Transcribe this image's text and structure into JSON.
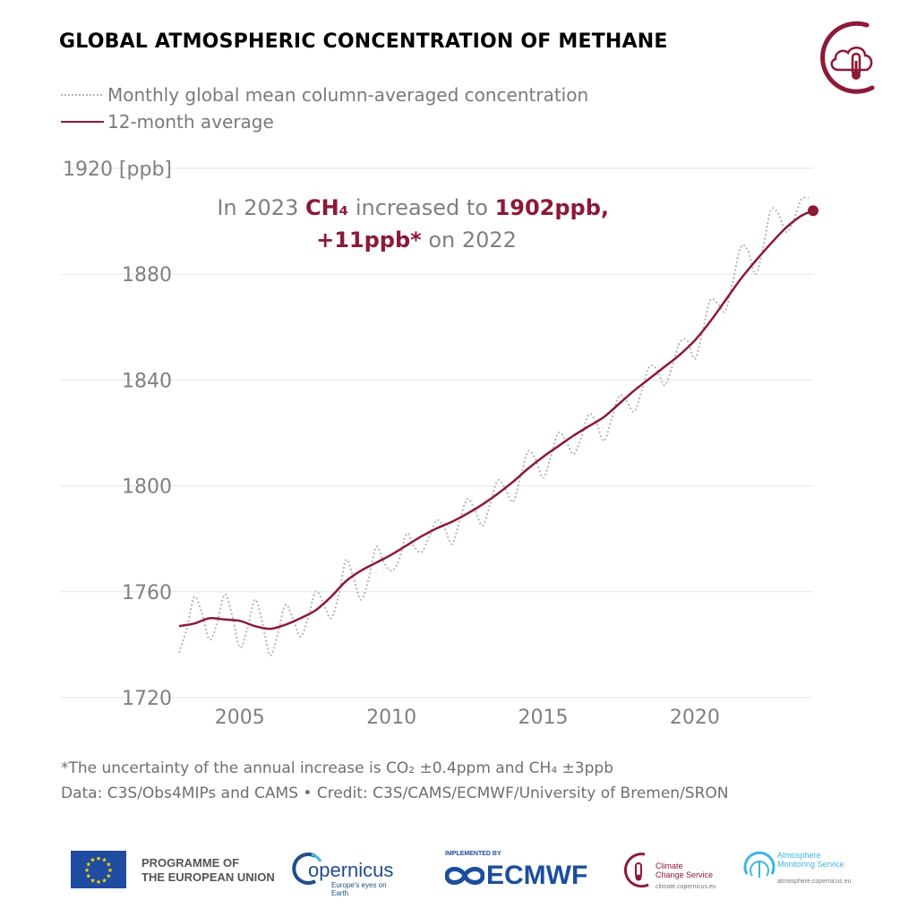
{
  "title": "GLOBAL ATMOSPHERIC CONCENTRATION OF METHANE",
  "legend": {
    "monthly": "Monthly global mean column-averaged concentration",
    "average": "12-month average"
  },
  "annotation": {
    "line1_pre": "In 2023 ",
    "line1_species": "CH₄",
    "line1_mid": " increased to ",
    "line1_value": "1902ppb,",
    "line2_value": "+11ppb*",
    "line2_post": " on 2022"
  },
  "notes": {
    "uncertainty": "*The uncertainty of the annual increase is CO₂ ±0.4ppm and CH₄ ±3ppb",
    "credit": "Data: C3S/Obs4MIPs and CAMS • Credit: C3S/CAMS/ECMWF/University of Bremen/SRON"
  },
  "logos": {
    "eu_programme_line1": "PROGRAMME OF",
    "eu_programme_line2": "THE EUROPEAN UNION",
    "copernicus": "opernicus",
    "copernicus_letter": "C",
    "copernicus_tagline": "Europe's eyes on Earth",
    "implemented_by": "IMPLEMENTED BY",
    "ecmwf": "ECMWF",
    "c3s_line1": "Climate",
    "c3s_line2": "Change Service",
    "c3s_url": "climate.copernicus.eu",
    "cams_line1": "Atmosphere",
    "cams_line2": "Monitoring Service",
    "cams_url": "atmosphere.copernicus.eu"
  },
  "colors": {
    "accent": "#8c1a36",
    "monthly": "#b5b5b5",
    "grid": "#e6e6e6",
    "text": "#808080",
    "eu_blue": "#1f4ba0",
    "eu_star": "#ffdd00",
    "ecmwf_blue": "#1b4e9e",
    "copernicus_blue": "#1f4e8c",
    "cams_cyan": "#3fb6df"
  },
  "chart_data": {
    "type": "line",
    "title": "GLOBAL ATMOSPHERIC CONCENTRATION OF METHANE",
    "ylabel": "[ppb]",
    "ylim": [
      1720,
      1920
    ],
    "yticks": [
      1720,
      1760,
      1800,
      1840,
      1880,
      1920
    ],
    "ytick_labels": [
      "1720",
      "1760",
      "1800",
      "1840",
      "1880",
      "1920 [ppb]"
    ],
    "xlim": [
      2003,
      2023.9
    ],
    "xticks": [
      2005,
      2010,
      2015,
      2020
    ],
    "grid": true,
    "legend_position": "top-left",
    "series": [
      {
        "name": "12-month average",
        "style": "solid",
        "x": [
          2003.0,
          2003.5,
          2004.0,
          2004.5,
          2005.0,
          2005.5,
          2006.0,
          2006.5,
          2007.0,
          2007.5,
          2008.0,
          2008.5,
          2009.0,
          2009.5,
          2010.0,
          2010.5,
          2011.0,
          2011.5,
          2012.0,
          2012.5,
          2013.0,
          2013.5,
          2014.0,
          2014.5,
          2015.0,
          2015.5,
          2016.0,
          2016.5,
          2017.0,
          2017.5,
          2018.0,
          2018.5,
          2019.0,
          2019.5,
          2020.0,
          2020.5,
          2021.0,
          2021.5,
          2022.0,
          2022.5,
          2023.0,
          2023.5,
          2023.9
        ],
        "y": [
          1747,
          1748,
          1750,
          1749.5,
          1749,
          1747,
          1746,
          1747.5,
          1750,
          1753,
          1758,
          1764,
          1768,
          1771,
          1774,
          1777.5,
          1781,
          1784,
          1786.5,
          1789.5,
          1793,
          1797,
          1801.5,
          1806.5,
          1811,
          1815,
          1819,
          1822.5,
          1826,
          1831,
          1836,
          1840.5,
          1845,
          1849.5,
          1855,
          1862,
          1870,
          1878,
          1885,
          1891.5,
          1897.5,
          1902,
          1904
        ]
      },
      {
        "name": "Monthly global mean column-averaged concentration",
        "style": "dotted",
        "seasonal_amplitude": 7,
        "x": [
          2003.0,
          2003.25,
          2003.5,
          2003.75,
          2004.0,
          2004.25,
          2004.5,
          2004.75,
          2005.0,
          2005.25,
          2005.5,
          2005.75,
          2006.0,
          2006.25,
          2006.5,
          2006.75,
          2007.0,
          2007.25,
          2007.5,
          2007.75,
          2008.0,
          2008.25,
          2008.5,
          2008.75,
          2009.0,
          2009.25,
          2009.5,
          2009.75,
          2010.0,
          2010.25,
          2010.5,
          2010.75,
          2011.0,
          2011.25,
          2011.5,
          2011.75,
          2012.0,
          2012.25,
          2012.5,
          2012.75,
          2013.0,
          2013.25,
          2013.5,
          2013.75,
          2014.0,
          2014.25,
          2014.5,
          2014.75,
          2015.0,
          2015.25,
          2015.5,
          2015.75,
          2016.0,
          2016.25,
          2016.5,
          2016.75,
          2017.0,
          2017.25,
          2017.5,
          2017.75,
          2018.0,
          2018.25,
          2018.5,
          2018.75,
          2019.0,
          2019.25,
          2019.5,
          2019.75,
          2020.0,
          2020.25,
          2020.5,
          2020.75,
          2021.0,
          2021.25,
          2021.5,
          2021.75,
          2022.0,
          2022.25,
          2022.5,
          2022.75,
          2023.0,
          2023.25,
          2023.5,
          2023.75
        ],
        "y": [
          1737,
          1746,
          1758,
          1752,
          1742,
          1748,
          1759,
          1751,
          1739,
          1746,
          1757,
          1748,
          1736,
          1744,
          1755,
          1750,
          1743,
          1750,
          1760,
          1756,
          1750,
          1758,
          1772,
          1765,
          1757,
          1765,
          1777,
          1771,
          1768,
          1772,
          1782,
          1777,
          1775,
          1781,
          1787,
          1784,
          1778,
          1787,
          1795,
          1791,
          1785,
          1793,
          1802,
          1799,
          1794,
          1803,
          1813,
          1810,
          1803,
          1811,
          1820,
          1817,
          1812,
          1818,
          1827,
          1824,
          1817,
          1825,
          1834,
          1832,
          1828,
          1836,
          1845,
          1844,
          1838,
          1845,
          1854,
          1855,
          1848,
          1858,
          1870,
          1869,
          1866,
          1877,
          1890,
          1889,
          1880,
          1890,
          1904,
          1903,
          1896,
          1900,
          1908,
          1909
        ]
      }
    ],
    "annotation": "In 2023 CH₄ increased to 1902ppb, +11ppb* on 2022"
  }
}
